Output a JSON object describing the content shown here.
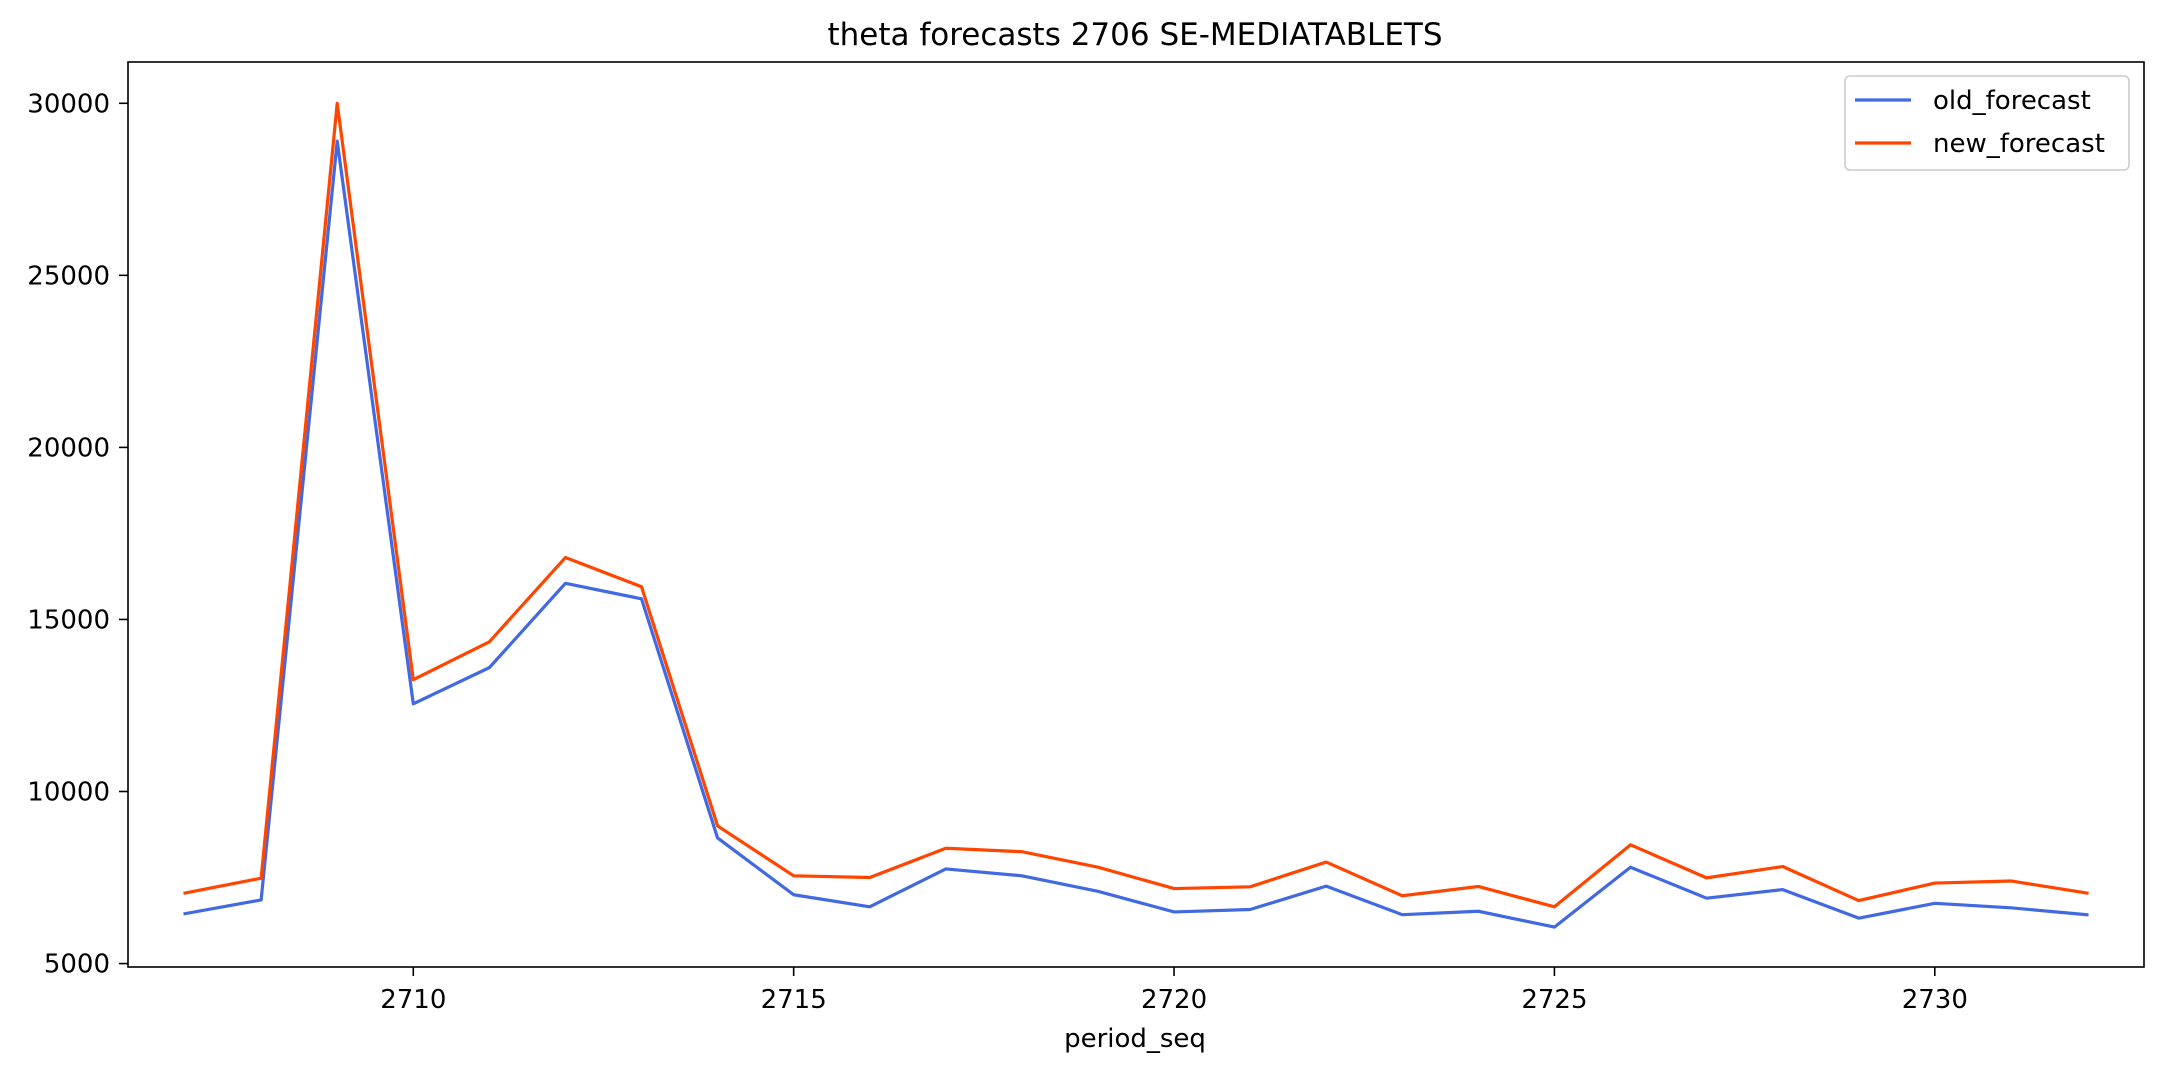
{
  "chart_data": {
    "type": "line",
    "title": "theta forecasts 2706 SE-MEDIATABLETS",
    "xlabel": "period_seq",
    "ylabel": "",
    "x": [
      2707,
      2708,
      2709,
      2710,
      2711,
      2712,
      2713,
      2714,
      2715,
      2716,
      2717,
      2718,
      2719,
      2720,
      2721,
      2722,
      2723,
      2724,
      2725,
      2726,
      2727,
      2728,
      2729,
      2730,
      2731,
      2732
    ],
    "xlim": [
      2706.25,
      2732.75
    ],
    "ylim": [
      4900,
      31200
    ],
    "xticks": [
      2710,
      2715,
      2720,
      2725,
      2730
    ],
    "yticks": [
      5000,
      10000,
      15000,
      20000,
      25000,
      30000
    ],
    "grid": false,
    "legend_position": "top-right",
    "series": [
      {
        "name": "old_forecast",
        "color": "#4169e1",
        "values": [
          6450,
          6850,
          28900,
          12550,
          13600,
          16050,
          15600,
          8650,
          7000,
          6650,
          7750,
          7550,
          7100,
          6500,
          6570,
          7250,
          6420,
          6520,
          6060,
          7800,
          6900,
          7150,
          6320,
          6750,
          6620,
          6420
        ]
      },
      {
        "name": "new_forecast",
        "color": "#ff4500",
        "values": [
          7050,
          7480,
          30000,
          13250,
          14350,
          16800,
          15950,
          9000,
          7550,
          7500,
          8350,
          8250,
          7800,
          7180,
          7230,
          7950,
          6970,
          7240,
          6650,
          8450,
          7490,
          7820,
          6830,
          7340,
          7400,
          7050
        ]
      }
    ]
  }
}
